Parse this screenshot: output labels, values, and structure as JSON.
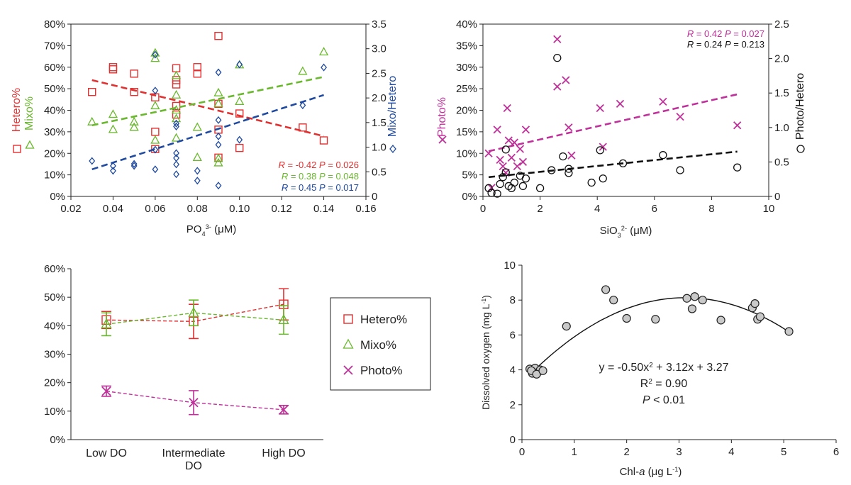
{
  "colors": {
    "hetero": "#e03030",
    "mixo": "#6ab82e",
    "photo": "#c0309a",
    "ratio_blue": "#1f4aa0",
    "ratio_black": "#111111",
    "axis": "#222222"
  },
  "chart_data": [
    {
      "id": "panel-a",
      "type": "scatter",
      "xlabel": "PO",
      "xlabel_sub": "4",
      "xlabel_sup": "3-",
      "xlabel_unit": " (μM)",
      "xlim": [
        0.02,
        0.16
      ],
      "xticks": [
        "0.02",
        "0.04",
        "0.06",
        "0.08",
        "0.10",
        "0.12",
        "0.14",
        "0.16"
      ],
      "ylim_left": [
        0,
        0.8
      ],
      "yticks_left": [
        "0%",
        "10%",
        "20%",
        "30%",
        "40%",
        "50%",
        "60%",
        "70%",
        "80%"
      ],
      "ylim_right": [
        0,
        3.5
      ],
      "yticks_right": [
        "0",
        "0.5",
        "1.0",
        "1.5",
        "2.0",
        "2.5",
        "3.0",
        "3.5"
      ],
      "ylabel_left": [
        {
          "text": "Hetero%",
          "marker": "square",
          "color": "#e03030"
        },
        {
          "text": "Mixo%",
          "marker": "triangle",
          "color": "#6ab82e"
        }
      ],
      "ylabel_right": {
        "text": "Mixo/Hetero",
        "marker": "diamond",
        "color": "#1f4aa0"
      },
      "series": [
        {
          "name": "Hetero%",
          "axis": "left",
          "marker": "square",
          "color": "#e03030",
          "x": [
            0.03,
            0.04,
            0.04,
            0.05,
            0.05,
            0.06,
            0.06,
            0.06,
            0.07,
            0.07,
            0.07,
            0.07,
            0.07,
            0.08,
            0.08,
            0.09,
            0.09,
            0.09,
            0.09,
            0.1,
            0.1,
            0.13,
            0.14
          ],
          "y": [
            0.485,
            0.6,
            0.59,
            0.57,
            0.485,
            0.46,
            0.3,
            0.22,
            0.595,
            0.54,
            0.52,
            0.42,
            0.38,
            0.6,
            0.57,
            0.745,
            0.43,
            0.31,
            0.18,
            0.385,
            0.225,
            0.32,
            0.26
          ],
          "trend": [
            0.54,
            0.28
          ]
        },
        {
          "name": "Mixo%",
          "axis": "left",
          "marker": "triangle",
          "color": "#6ab82e",
          "x": [
            0.03,
            0.04,
            0.04,
            0.05,
            0.05,
            0.06,
            0.06,
            0.06,
            0.06,
            0.07,
            0.07,
            0.07,
            0.07,
            0.07,
            0.08,
            0.08,
            0.09,
            0.09,
            0.09,
            0.09,
            0.1,
            0.1,
            0.13,
            0.14
          ],
          "y": [
            0.345,
            0.38,
            0.31,
            0.345,
            0.32,
            0.665,
            0.64,
            0.42,
            0.26,
            0.56,
            0.47,
            0.4,
            0.36,
            0.27,
            0.32,
            0.18,
            0.48,
            0.43,
            0.175,
            0.155,
            0.61,
            0.44,
            0.58,
            0.67
          ],
          "trend": [
            0.33,
            0.555
          ]
        },
        {
          "name": "Mixo/Hetero",
          "axis": "right",
          "marker": "diamond",
          "color": "#1f4aa0",
          "x": [
            0.03,
            0.04,
            0.04,
            0.05,
            0.05,
            0.06,
            0.06,
            0.06,
            0.06,
            0.07,
            0.07,
            0.07,
            0.07,
            0.07,
            0.07,
            0.08,
            0.08,
            0.09,
            0.09,
            0.09,
            0.09,
            0.09,
            0.1,
            0.1,
            0.13,
            0.14
          ],
          "y": [
            0.72,
            0.52,
            0.62,
            0.62,
            0.66,
            2.88,
            2.15,
            0.95,
            0.55,
            1.48,
            1.42,
            0.88,
            0.78,
            0.65,
            0.45,
            0.52,
            0.32,
            2.52,
            1.55,
            1.22,
            1.05,
            0.22,
            2.68,
            1.15,
            1.85,
            2.62
          ],
          "trend": [
            0.55,
            2.06
          ]
        }
      ],
      "annotations": [
        {
          "R": "-0.42",
          "P": "0.026",
          "color": "#e03030"
        },
        {
          "R": "0.38",
          "P": "0.048",
          "color": "#6ab82e"
        },
        {
          "R": "0.45",
          "P": "0.017",
          "color": "#1f4aa0"
        }
      ]
    },
    {
      "id": "panel-b",
      "type": "scatter",
      "xlabel": "SiO",
      "xlabel_sub": "3",
      "xlabel_sup": "2-",
      "xlabel_unit": " (μM)",
      "xlim": [
        0,
        10
      ],
      "xticks": [
        "0",
        "2",
        "4",
        "6",
        "8",
        "10"
      ],
      "ylim_left": [
        0,
        0.4
      ],
      "yticks_left": [
        "0%",
        "5%",
        "10%",
        "15%",
        "20%",
        "25%",
        "30%",
        "35%",
        "40%"
      ],
      "ylim_right": [
        0,
        2.5
      ],
      "yticks_right": [
        "0",
        "0.5",
        "1.0",
        "1.5",
        "2.0",
        "2.5"
      ],
      "ylabel_left": [
        {
          "text": "Photo%",
          "marker": "cross",
          "color": "#c0309a"
        }
      ],
      "ylabel_right": {
        "text": "Photo/Hetero",
        "marker": "circle",
        "color": "#111111"
      },
      "series": [
        {
          "name": "Photo%",
          "axis": "left",
          "marker": "cross",
          "color": "#c0309a",
          "x": [
            0.2,
            0.3,
            0.5,
            0.6,
            0.7,
            0.8,
            0.85,
            0.9,
            1.0,
            1.1,
            1.2,
            1.3,
            1.4,
            1.5,
            2.6,
            2.6,
            2.9,
            3.0,
            3.1,
            4.1,
            4.2,
            4.8,
            6.3,
            6.9,
            8.9
          ],
          "y": [
            0.1,
            0.02,
            0.155,
            0.085,
            0.07,
            0.055,
            0.205,
            0.13,
            0.09,
            0.125,
            0.07,
            0.11,
            0.08,
            0.155,
            0.365,
            0.255,
            0.27,
            0.16,
            0.095,
            0.205,
            0.115,
            0.215,
            0.22,
            0.185,
            0.165
          ],
          "trend": [
            0.105,
            0.237
          ]
        },
        {
          "name": "Photo/Hetero",
          "axis": "right",
          "marker": "circle",
          "color": "#111111",
          "x": [
            0.2,
            0.3,
            0.5,
            0.6,
            0.7,
            0.8,
            0.8,
            0.9,
            1.0,
            1.1,
            1.3,
            1.4,
            1.5,
            2.0,
            2.4,
            2.6,
            2.8,
            3.0,
            3.0,
            3.8,
            4.1,
            4.2,
            4.9,
            6.3,
            6.9,
            8.9
          ],
          "y": [
            0.12,
            0.05,
            0.04,
            0.18,
            0.28,
            0.35,
            0.68,
            0.15,
            0.12,
            0.2,
            0.3,
            0.15,
            0.26,
            0.12,
            0.38,
            2.01,
            0.58,
            0.4,
            0.34,
            0.2,
            0.67,
            0.26,
            0.48,
            0.6,
            0.38,
            0.42
          ],
          "trend": [
            0.28,
            0.65
          ]
        }
      ],
      "annotations": [
        {
          "R": "0.42",
          "P": "0.027",
          "color": "#c0309a"
        },
        {
          "R": "0.24",
          "P": "0.213",
          "color": "#111111"
        }
      ]
    },
    {
      "id": "panel-c",
      "type": "line",
      "categories": [
        "Low DO",
        "Intermediate DO",
        "High DO"
      ],
      "category_lines": [
        [
          "Low DO"
        ],
        [
          "Intermediate",
          "DO"
        ],
        [
          "High DO"
        ]
      ],
      "ylim": [
        0,
        0.6
      ],
      "yticks": [
        "0%",
        "10%",
        "20%",
        "30%",
        "40%",
        "50%",
        "60%"
      ],
      "series": [
        {
          "name": "Hetero%",
          "marker": "square",
          "color": "#e03030",
          "values": [
            0.42,
            0.415,
            0.475
          ],
          "err": [
            0.03,
            0.06,
            0.055
          ]
        },
        {
          "name": "Mixo%",
          "marker": "triangle",
          "color": "#6ab82e",
          "values": [
            0.405,
            0.445,
            0.42
          ],
          "err": [
            0.04,
            0.045,
            0.05
          ]
        },
        {
          "name": "Photo%",
          "marker": "cross",
          "color": "#c0309a",
          "values": [
            0.17,
            0.13,
            0.105
          ],
          "err": [
            0.018,
            0.042,
            0.015
          ]
        }
      ],
      "legend": [
        "Hetero%",
        "Mixo%",
        "Photo%"
      ]
    },
    {
      "id": "panel-d",
      "type": "scatter",
      "xlabel": "Chl-",
      "xlabel_italic": "a",
      "xlabel_unit": " (μg L",
      "xlabel_unit_sup": "-1",
      "xlabel_unit_end": ")",
      "xlim": [
        0,
        6
      ],
      "xticks": [
        "0",
        "1",
        "2",
        "3",
        "4",
        "5",
        "6"
      ],
      "ylabel": "Dissolved oxygen (mg L",
      "ylabel_sup": "-1",
      "ylabel_end": ")",
      "ylim": [
        0,
        10
      ],
      "yticks": [
        "0",
        "2",
        "4",
        "6",
        "8",
        "10"
      ],
      "points": {
        "x": [
          0.15,
          0.2,
          0.25,
          0.3,
          0.35,
          0.18,
          0.28,
          0.4,
          0.85,
          1.6,
          1.75,
          2.0,
          2.55,
          3.15,
          3.25,
          3.3,
          3.45,
          3.8,
          4.4,
          4.45,
          4.5,
          4.55,
          5.1
        ],
        "y": [
          4.05,
          3.8,
          4.1,
          3.85,
          4.0,
          3.95,
          3.75,
          3.95,
          6.5,
          8.6,
          8.0,
          6.95,
          6.9,
          8.1,
          7.5,
          8.2,
          8.0,
          6.85,
          7.55,
          7.8,
          6.9,
          7.05,
          6.2
        ]
      },
      "fit": {
        "a": -0.5,
        "b": 3.12,
        "c": 3.27,
        "x_from": 0.2,
        "x_to": 5.1
      },
      "equation": {
        "prefix": "y = -0.50x",
        "sup": "2",
        "suffix": " + 3.12x + 3.27"
      },
      "r2": {
        "prefix": "R",
        "sup": "2",
        "suffix": " = 0.90"
      },
      "pvalue": {
        "p": "P",
        "suffix": " < 0.01"
      }
    }
  ]
}
